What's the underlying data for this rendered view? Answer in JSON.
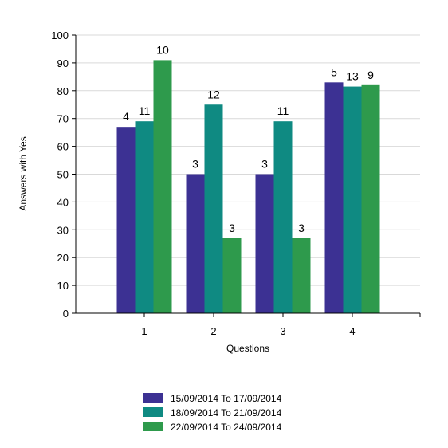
{
  "chart_data": {
    "type": "bar",
    "title": "",
    "xlabel": "Questions",
    "ylabel": "Answers with Yes",
    "ylim": [
      0,
      100
    ],
    "yticks": [
      0,
      10,
      20,
      30,
      40,
      50,
      60,
      70,
      80,
      90,
      100
    ],
    "grid": true,
    "legend_position": "bottom",
    "categories": [
      "1",
      "2",
      "3",
      "4"
    ],
    "series": [
      {
        "name": "15/09/2014 To 17/09/2014",
        "color": "#3c3193",
        "values": [
          67,
          50,
          50,
          83
        ],
        "labels": [
          "4",
          "3",
          "3",
          "5"
        ]
      },
      {
        "name": "18/09/2014 To 21/09/2014",
        "color": "#0f8a82",
        "values": [
          69,
          75,
          69,
          81.5
        ],
        "labels": [
          "11",
          "12",
          "11",
          "13"
        ]
      },
      {
        "name": "22/09/2014 To 24/09/2014",
        "color": "#2e9a4c",
        "values": [
          91,
          27,
          27,
          82
        ],
        "labels": [
          "10",
          "3",
          "3",
          "9"
        ]
      }
    ]
  }
}
